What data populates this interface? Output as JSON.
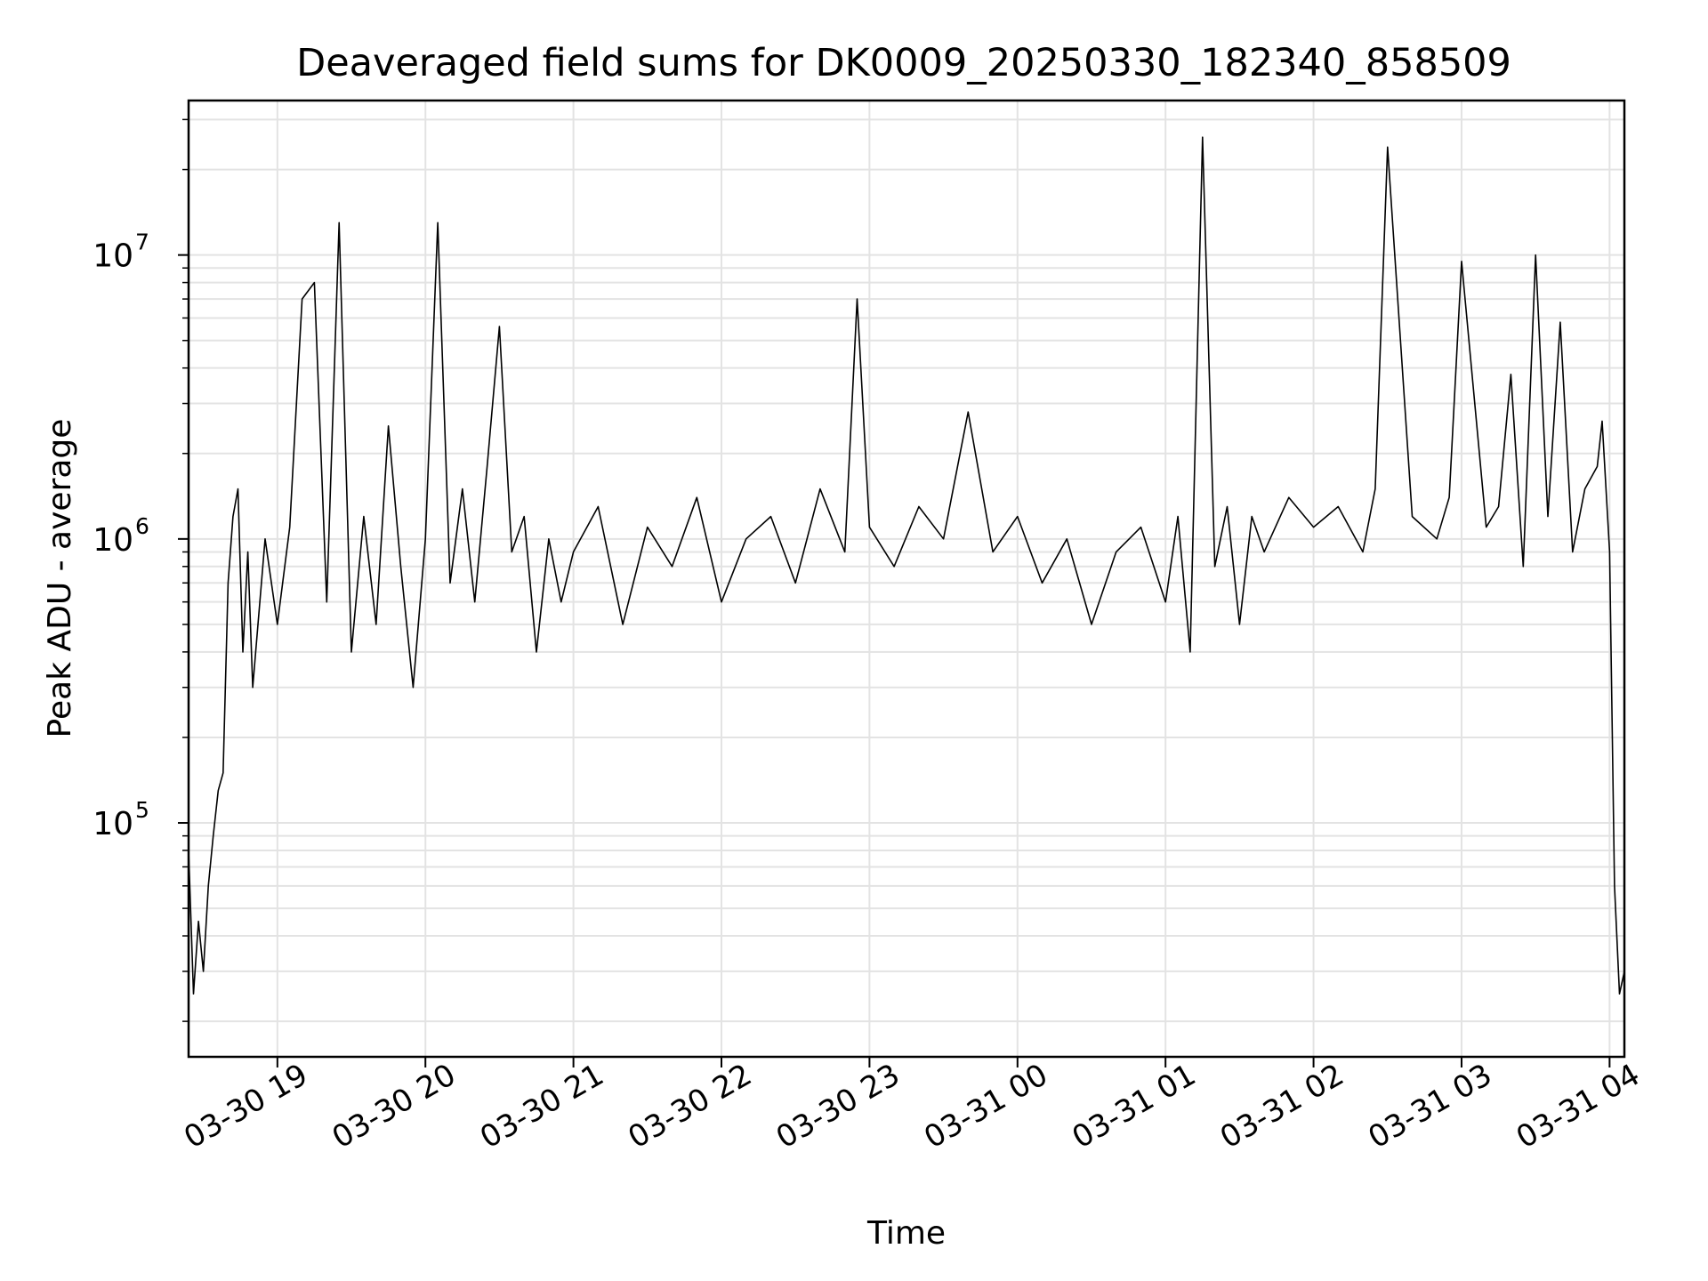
{
  "chart_data": {
    "type": "line",
    "title": "Deaveraged field sums for DK0009_20250330_182340_858509",
    "xlabel": "Time",
    "ylabel": "Peak ADU - average",
    "yscale": "log",
    "ylim": [
      15000,
      35000000
    ],
    "xlim": [
      "2025-03-30 18:24",
      "2025-03-31 04:06"
    ],
    "grid": true,
    "line_color": "#000000",
    "x_ticks": [
      {
        "t": "2025-03-30 19:00",
        "label": "03-30 19"
      },
      {
        "t": "2025-03-30 20:00",
        "label": "03-30 20"
      },
      {
        "t": "2025-03-30 21:00",
        "label": "03-30 21"
      },
      {
        "t": "2025-03-30 22:00",
        "label": "03-30 22"
      },
      {
        "t": "2025-03-30 23:00",
        "label": "03-30 23"
      },
      {
        "t": "2025-03-31 00:00",
        "label": "03-31 00"
      },
      {
        "t": "2025-03-31 01:00",
        "label": "03-31 01"
      },
      {
        "t": "2025-03-31 02:00",
        "label": "03-31 02"
      },
      {
        "t": "2025-03-31 03:00",
        "label": "03-31 03"
      },
      {
        "t": "2025-03-31 04:00",
        "label": "03-31 04"
      }
    ],
    "y_ticks": [
      {
        "value": 100000,
        "base": "10",
        "exp": "5"
      },
      {
        "value": 1000000,
        "base": "10",
        "exp": "6"
      },
      {
        "value": 10000000,
        "base": "10",
        "exp": "7"
      }
    ],
    "series": [
      {
        "x": [
          "2025-03-30 18:24",
          "2025-03-30 18:26",
          "2025-03-30 18:28",
          "2025-03-30 18:30",
          "2025-03-30 18:32",
          "2025-03-30 18:34",
          "2025-03-30 18:36",
          "2025-03-30 18:38",
          "2025-03-30 18:40",
          "2025-03-30 18:42",
          "2025-03-30 18:44",
          "2025-03-30 18:46",
          "2025-03-30 18:48",
          "2025-03-30 18:50",
          "2025-03-30 18:55",
          "2025-03-30 19:00",
          "2025-03-30 19:05",
          "2025-03-30 19:10",
          "2025-03-30 19:15",
          "2025-03-30 19:20",
          "2025-03-30 19:25",
          "2025-03-30 19:30",
          "2025-03-30 19:35",
          "2025-03-30 19:40",
          "2025-03-30 19:45",
          "2025-03-30 19:50",
          "2025-03-30 19:55",
          "2025-03-30 20:00",
          "2025-03-30 20:05",
          "2025-03-30 20:10",
          "2025-03-30 20:15",
          "2025-03-30 20:20",
          "2025-03-30 20:25",
          "2025-03-30 20:30",
          "2025-03-30 20:35",
          "2025-03-30 20:40",
          "2025-03-30 20:45",
          "2025-03-30 20:50",
          "2025-03-30 20:55",
          "2025-03-30 21:00",
          "2025-03-30 21:10",
          "2025-03-30 21:20",
          "2025-03-30 21:30",
          "2025-03-30 21:40",
          "2025-03-30 21:50",
          "2025-03-30 22:00",
          "2025-03-30 22:10",
          "2025-03-30 22:20",
          "2025-03-30 22:30",
          "2025-03-30 22:40",
          "2025-03-30 22:50",
          "2025-03-30 22:55",
          "2025-03-30 23:00",
          "2025-03-30 23:10",
          "2025-03-30 23:20",
          "2025-03-30 23:30",
          "2025-03-30 23:40",
          "2025-03-30 23:50",
          "2025-03-31 00:00",
          "2025-03-31 00:10",
          "2025-03-31 00:20",
          "2025-03-31 00:30",
          "2025-03-31 00:40",
          "2025-03-31 00:50",
          "2025-03-31 01:00",
          "2025-03-31 01:05",
          "2025-03-31 01:10",
          "2025-03-31 01:15",
          "2025-03-31 01:20",
          "2025-03-31 01:25",
          "2025-03-31 01:30",
          "2025-03-31 01:35",
          "2025-03-31 01:40",
          "2025-03-31 01:50",
          "2025-03-31 02:00",
          "2025-03-31 02:10",
          "2025-03-31 02:20",
          "2025-03-31 02:25",
          "2025-03-31 02:30",
          "2025-03-31 02:40",
          "2025-03-31 02:50",
          "2025-03-31 02:55",
          "2025-03-31 03:00",
          "2025-03-31 03:10",
          "2025-03-31 03:15",
          "2025-03-31 03:20",
          "2025-03-31 03:25",
          "2025-03-31 03:30",
          "2025-03-31 03:35",
          "2025-03-31 03:40",
          "2025-03-31 03:45",
          "2025-03-31 03:50",
          "2025-03-31 03:55",
          "2025-03-31 03:57",
          "2025-03-31 04:00",
          "2025-03-31 04:02",
          "2025-03-31 04:04",
          "2025-03-31 04:06"
        ],
        "y": [
          80000,
          25000,
          45000,
          30000,
          60000,
          90000,
          130000,
          150000,
          700000,
          1200000,
          1500000,
          400000,
          900000,
          300000,
          1000000,
          500000,
          1100000,
          7000000,
          8000000,
          600000,
          13000000,
          400000,
          1200000,
          500000,
          2500000,
          800000,
          300000,
          1000000,
          13000000,
          700000,
          1500000,
          600000,
          1800000,
          5600000,
          900000,
          1200000,
          400000,
          1000000,
          600000,
          900000,
          1300000,
          500000,
          1100000,
          800000,
          1400000,
          600000,
          1000000,
          1200000,
          700000,
          1500000,
          900000,
          7000000,
          1100000,
          800000,
          1300000,
          1000000,
          2800000,
          900000,
          1200000,
          700000,
          1000000,
          500000,
          900000,
          1100000,
          600000,
          1200000,
          400000,
          26000000,
          800000,
          1300000,
          500000,
          1200000,
          900000,
          1400000,
          1100000,
          1300000,
          900000,
          1500000,
          24000000,
          1200000,
          1000000,
          1400000,
          9500000,
          1100000,
          1300000,
          3800000,
          800000,
          10000000,
          1200000,
          5800000,
          900000,
          1500000,
          1800000,
          2600000,
          900000,
          60000,
          25000,
          30000
        ]
      }
    ]
  }
}
